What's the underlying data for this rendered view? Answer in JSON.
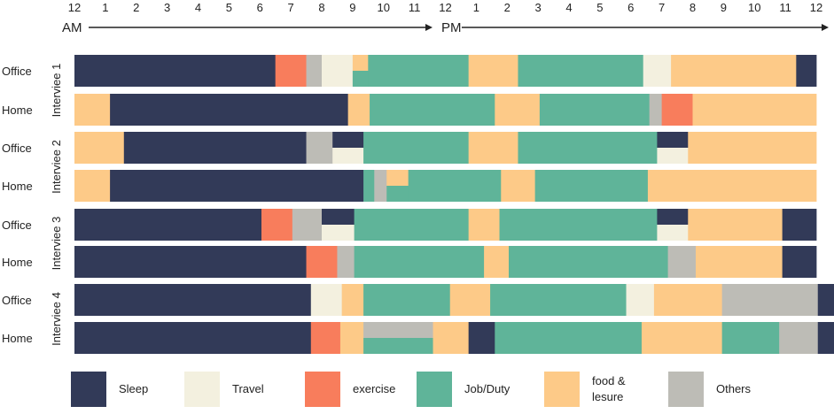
{
  "chart_data": {
    "type": "timeline",
    "title": "",
    "x_unit": "hour of day",
    "x_range": [
      0,
      24
    ],
    "time_ticks": [
      "12",
      "1",
      "2",
      "3",
      "4",
      "5",
      "6",
      "7",
      "8",
      "9",
      "10",
      "11",
      "12",
      "1",
      "2",
      "3",
      "4",
      "5",
      "6",
      "7",
      "8",
      "9",
      "10",
      "11",
      "12"
    ],
    "am_label": "AM",
    "pm_label": "PM",
    "categories": [
      {
        "key": "sleep",
        "label": "Sleep",
        "color": "#323a58"
      },
      {
        "key": "travel",
        "label": "Travel",
        "color": "#f3f0df"
      },
      {
        "key": "exercise",
        "label": "exercise",
        "color": "#f87d5c"
      },
      {
        "key": "job",
        "label": "Job/Duty",
        "color": "#5fb499"
      },
      {
        "key": "food",
        "label": "food & lesure",
        "color": "#fdca88"
      },
      {
        "key": "others",
        "label": "Others",
        "color": "#bdbcb6"
      }
    ],
    "interviewees": [
      {
        "label": "Interviee 1",
        "rows": [
          {
            "location": "Office",
            "segments": [
              [
                "sleep",
                0,
                6.5
              ],
              [
                "exercise",
                6.5,
                7.5
              ],
              [
                "others",
                7.5,
                8.0
              ],
              [
                "travel",
                8.0,
                9.0
              ],
              [
                "food",
                9.0,
                9.5,
                "top"
              ],
              [
                "job",
                9.0,
                9.5,
                "bottom"
              ],
              [
                "job",
                9.5,
                12.75
              ],
              [
                "food",
                12.75,
                14.35
              ],
              [
                "job",
                14.35,
                18.4
              ],
              [
                "travel",
                18.4,
                19.3
              ],
              [
                "food",
                19.3,
                23.35
              ],
              [
                "sleep",
                23.35,
                24
              ]
            ]
          },
          {
            "location": "Home",
            "segments": [
              [
                "food",
                0,
                1.15
              ],
              [
                "sleep",
                1.15,
                8.85
              ],
              [
                "food",
                8.85,
                9.55
              ],
              [
                "job",
                9.55,
                13.6
              ],
              [
                "food",
                13.6,
                15.05
              ],
              [
                "job",
                15.05,
                18.6
              ],
              [
                "others",
                18.6,
                19.0
              ],
              [
                "exercise",
                19.0,
                20.0
              ],
              [
                "food",
                20.0,
                24
              ]
            ]
          }
        ]
      },
      {
        "label": "Interviee 2",
        "rows": [
          {
            "location": "Office",
            "segments": [
              [
                "food",
                0,
                1.6
              ],
              [
                "sleep",
                1.6,
                7.5
              ],
              [
                "others",
                7.5,
                8.35
              ],
              [
                "sleep",
                8.35,
                9.35,
                "top"
              ],
              [
                "travel",
                8.35,
                9.35,
                "bottom"
              ],
              [
                "job",
                9.35,
                12.75
              ],
              [
                "food",
                12.75,
                14.35
              ],
              [
                "job",
                14.35,
                18.85
              ],
              [
                "sleep",
                18.85,
                19.85,
                "top"
              ],
              [
                "travel",
                18.85,
                19.85,
                "bottom"
              ],
              [
                "food",
                19.85,
                24
              ]
            ]
          },
          {
            "location": "Home",
            "segments": [
              [
                "food",
                0,
                1.15
              ],
              [
                "sleep",
                1.15,
                9.35
              ],
              [
                "job",
                9.35,
                9.7
              ],
              [
                "others",
                9.7,
                10.1
              ],
              [
                "food",
                10.1,
                10.8,
                "top"
              ],
              [
                "job",
                10.1,
                10.8,
                "bottom"
              ],
              [
                "job",
                10.8,
                13.8
              ],
              [
                "food",
                13.8,
                14.9
              ],
              [
                "job",
                14.9,
                18.55
              ],
              [
                "food",
                18.55,
                24
              ]
            ]
          }
        ]
      },
      {
        "label": "Interviee 3",
        "rows": [
          {
            "location": "Office",
            "segments": [
              [
                "sleep",
                0,
                6.05
              ],
              [
                "exercise",
                6.05,
                7.05
              ],
              [
                "others",
                7.05,
                8.0
              ],
              [
                "sleep",
                8.0,
                9.05,
                "top"
              ],
              [
                "travel",
                8.0,
                9.05,
                "bottom"
              ],
              [
                "job",
                9.05,
                12.75
              ],
              [
                "food",
                12.75,
                13.75
              ],
              [
                "job",
                13.75,
                18.85
              ],
              [
                "sleep",
                18.85,
                19.85,
                "top"
              ],
              [
                "travel",
                18.85,
                19.85,
                "bottom"
              ],
              [
                "food",
                19.85,
                22.9
              ],
              [
                "sleep",
                22.9,
                24
              ]
            ]
          },
          {
            "location": "Home",
            "segments": [
              [
                "sleep",
                0,
                7.5
              ],
              [
                "exercise",
                7.5,
                8.5
              ],
              [
                "others",
                8.5,
                9.05
              ],
              [
                "job",
                9.05,
                13.25
              ],
              [
                "food",
                13.25,
                14.05
              ],
              [
                "job",
                14.05,
                19.2
              ],
              [
                "others",
                19.2,
                20.1
              ],
              [
                "food",
                20.1,
                22.9
              ],
              [
                "sleep",
                22.9,
                24
              ]
            ]
          }
        ]
      },
      {
        "label": "Interviee 4",
        "rows": [
          {
            "location": "Office",
            "segments": [
              [
                "sleep",
                0,
                7.65
              ],
              [
                "travel",
                7.65,
                8.65
              ],
              [
                "food",
                8.65,
                9.35
              ],
              [
                "job",
                9.35,
                12.15
              ],
              [
                "food",
                12.15,
                13.45
              ],
              [
                "job",
                13.45,
                17.85
              ],
              [
                "travel",
                17.85,
                18.75
              ],
              [
                "food",
                18.75,
                20.95
              ],
              [
                "others",
                20.95,
                24.05
              ],
              [
                "sleep",
                24.05,
                24.6
              ]
            ]
          },
          {
            "location": "Home",
            "segments": [
              [
                "sleep",
                0,
                7.65
              ],
              [
                "exercise",
                7.65,
                8.6
              ],
              [
                "food",
                8.6,
                9.35
              ],
              [
                "others",
                9.35,
                11.6,
                "top"
              ],
              [
                "job",
                9.35,
                11.6,
                "bottom"
              ],
              [
                "food",
                11.6,
                12.75
              ],
              [
                "sleep",
                12.75,
                13.6
              ],
              [
                "job",
                13.6,
                18.35
              ],
              [
                "food",
                18.35,
                20.95
              ],
              [
                "job",
                20.95,
                22.8
              ],
              [
                "others",
                22.8,
                24.05
              ],
              [
                "sleep",
                24.05,
                24.6
              ]
            ]
          }
        ]
      }
    ]
  }
}
